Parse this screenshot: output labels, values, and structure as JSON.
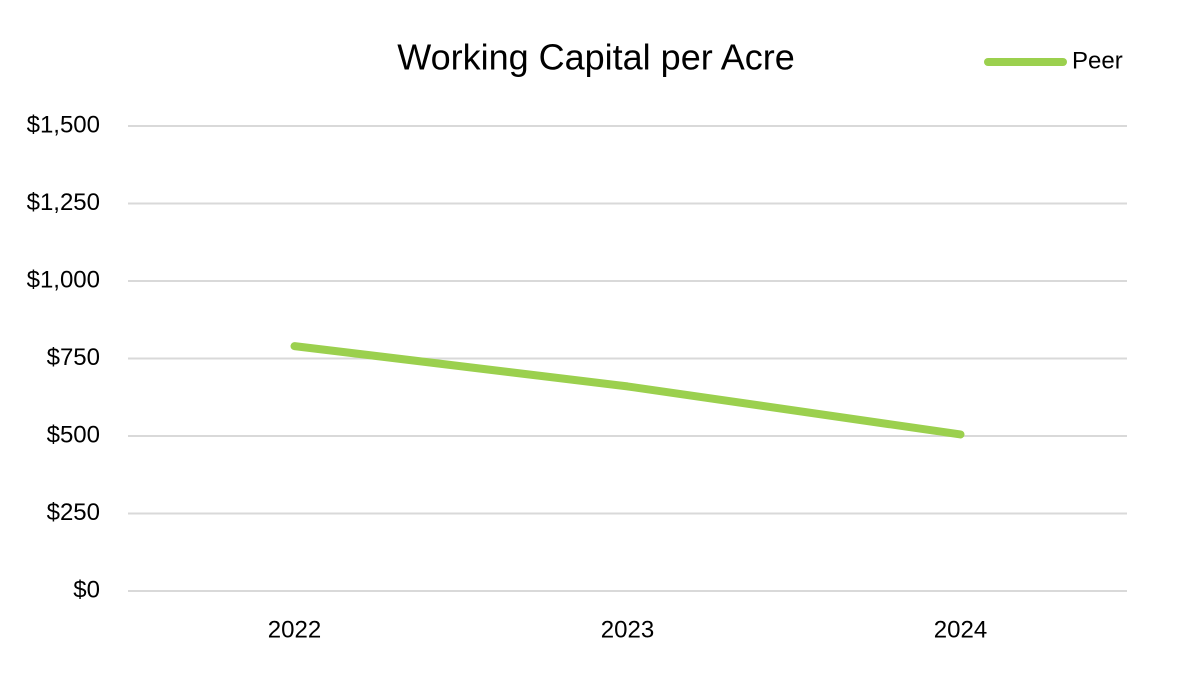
{
  "chart_data": {
    "type": "line",
    "title": "Working Capital per Acre",
    "categories": [
      "2022",
      "2023",
      "2024"
    ],
    "series": [
      {
        "name": "Peer",
        "color": "#9bd04e",
        "values": [
          790,
          660,
          505
        ]
      }
    ],
    "ylim": [
      0,
      1500
    ],
    "yticks": [
      {
        "value": 0,
        "label": "$0"
      },
      {
        "value": 250,
        "label": "$250"
      },
      {
        "value": 500,
        "label": "$500"
      },
      {
        "value": 750,
        "label": "$750"
      },
      {
        "value": 1000,
        "label": "$1,000"
      },
      {
        "value": 1250,
        "label": "$1,250"
      },
      {
        "value": 1500,
        "label": "$1,500"
      }
    ],
    "grid": true,
    "legend": "top-right"
  }
}
